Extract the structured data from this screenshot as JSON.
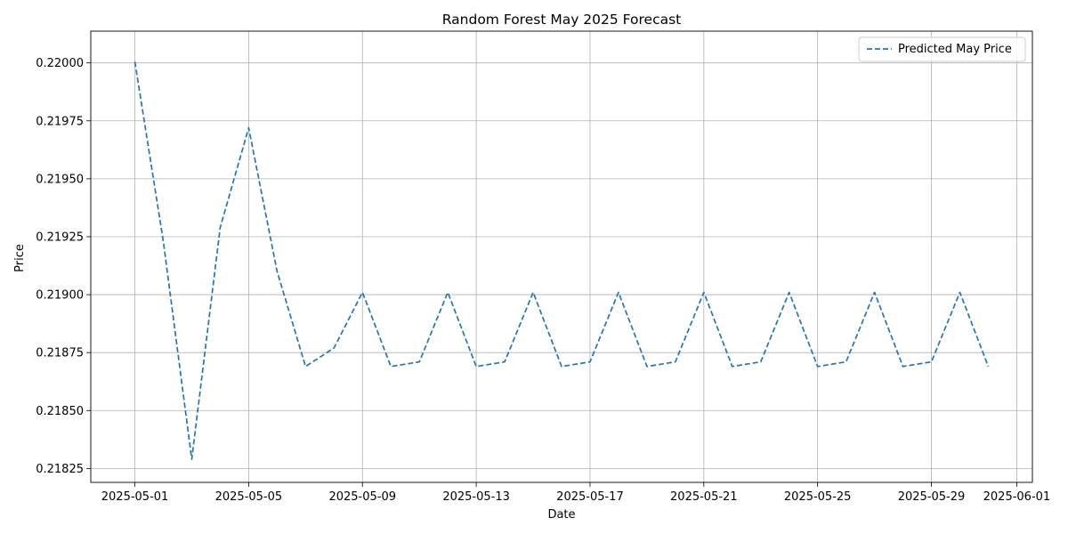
{
  "chart_data": {
    "type": "line",
    "title": "Random Forest May 2025 Forecast",
    "xlabel": "Date",
    "ylabel": "Price",
    "x_tick_labels": [
      "2025-05-01",
      "2025-05-05",
      "2025-05-09",
      "2025-05-13",
      "2025-05-17",
      "2025-05-21",
      "2025-05-25",
      "2025-05-29",
      "2025-06-01"
    ],
    "x_tick_days": [
      1,
      5,
      9,
      13,
      17,
      21,
      25,
      29,
      32
    ],
    "y_tick_labels": [
      "0.21825",
      "0.21850",
      "0.21875",
      "0.21900",
      "0.21925",
      "0.21950",
      "0.21975",
      "0.22000"
    ],
    "y_tick_values": [
      0.21825,
      0.2185,
      0.21875,
      0.219,
      0.21925,
      0.2195,
      0.21975,
      0.22
    ],
    "ylim": [
      0.21819,
      0.220137
    ],
    "xlim_days": [
      -0.55,
      32.55
    ],
    "grid": true,
    "legend_position": "top-right",
    "series": [
      {
        "name": "Predicted May Price",
        "color": "#1f77b4",
        "line_style": "dashed",
        "x": [
          "2025-05-01",
          "2025-05-02",
          "2025-05-03",
          "2025-05-04",
          "2025-05-05",
          "2025-05-06",
          "2025-05-07",
          "2025-05-08",
          "2025-05-09",
          "2025-05-10",
          "2025-05-11",
          "2025-05-12",
          "2025-05-13",
          "2025-05-14",
          "2025-05-15",
          "2025-05-16",
          "2025-05-17",
          "2025-05-18",
          "2025-05-19",
          "2025-05-20",
          "2025-05-21",
          "2025-05-22",
          "2025-05-23",
          "2025-05-24",
          "2025-05-25",
          "2025-05-26",
          "2025-05-27",
          "2025-05-28",
          "2025-05-29",
          "2025-05-30",
          "2025-05-31"
        ],
        "values": [
          0.220005,
          0.21923,
          0.21829,
          0.21929,
          0.21972,
          0.2191,
          0.21869,
          0.21877,
          0.21901,
          0.21869,
          0.21871,
          0.21901,
          0.21869,
          0.21871,
          0.21901,
          0.21869,
          0.21871,
          0.21901,
          0.21869,
          0.21871,
          0.21901,
          0.21869,
          0.21871,
          0.21901,
          0.21869,
          0.21871,
          0.21901,
          0.21869,
          0.21871,
          0.21901,
          0.21869
        ]
      }
    ]
  }
}
